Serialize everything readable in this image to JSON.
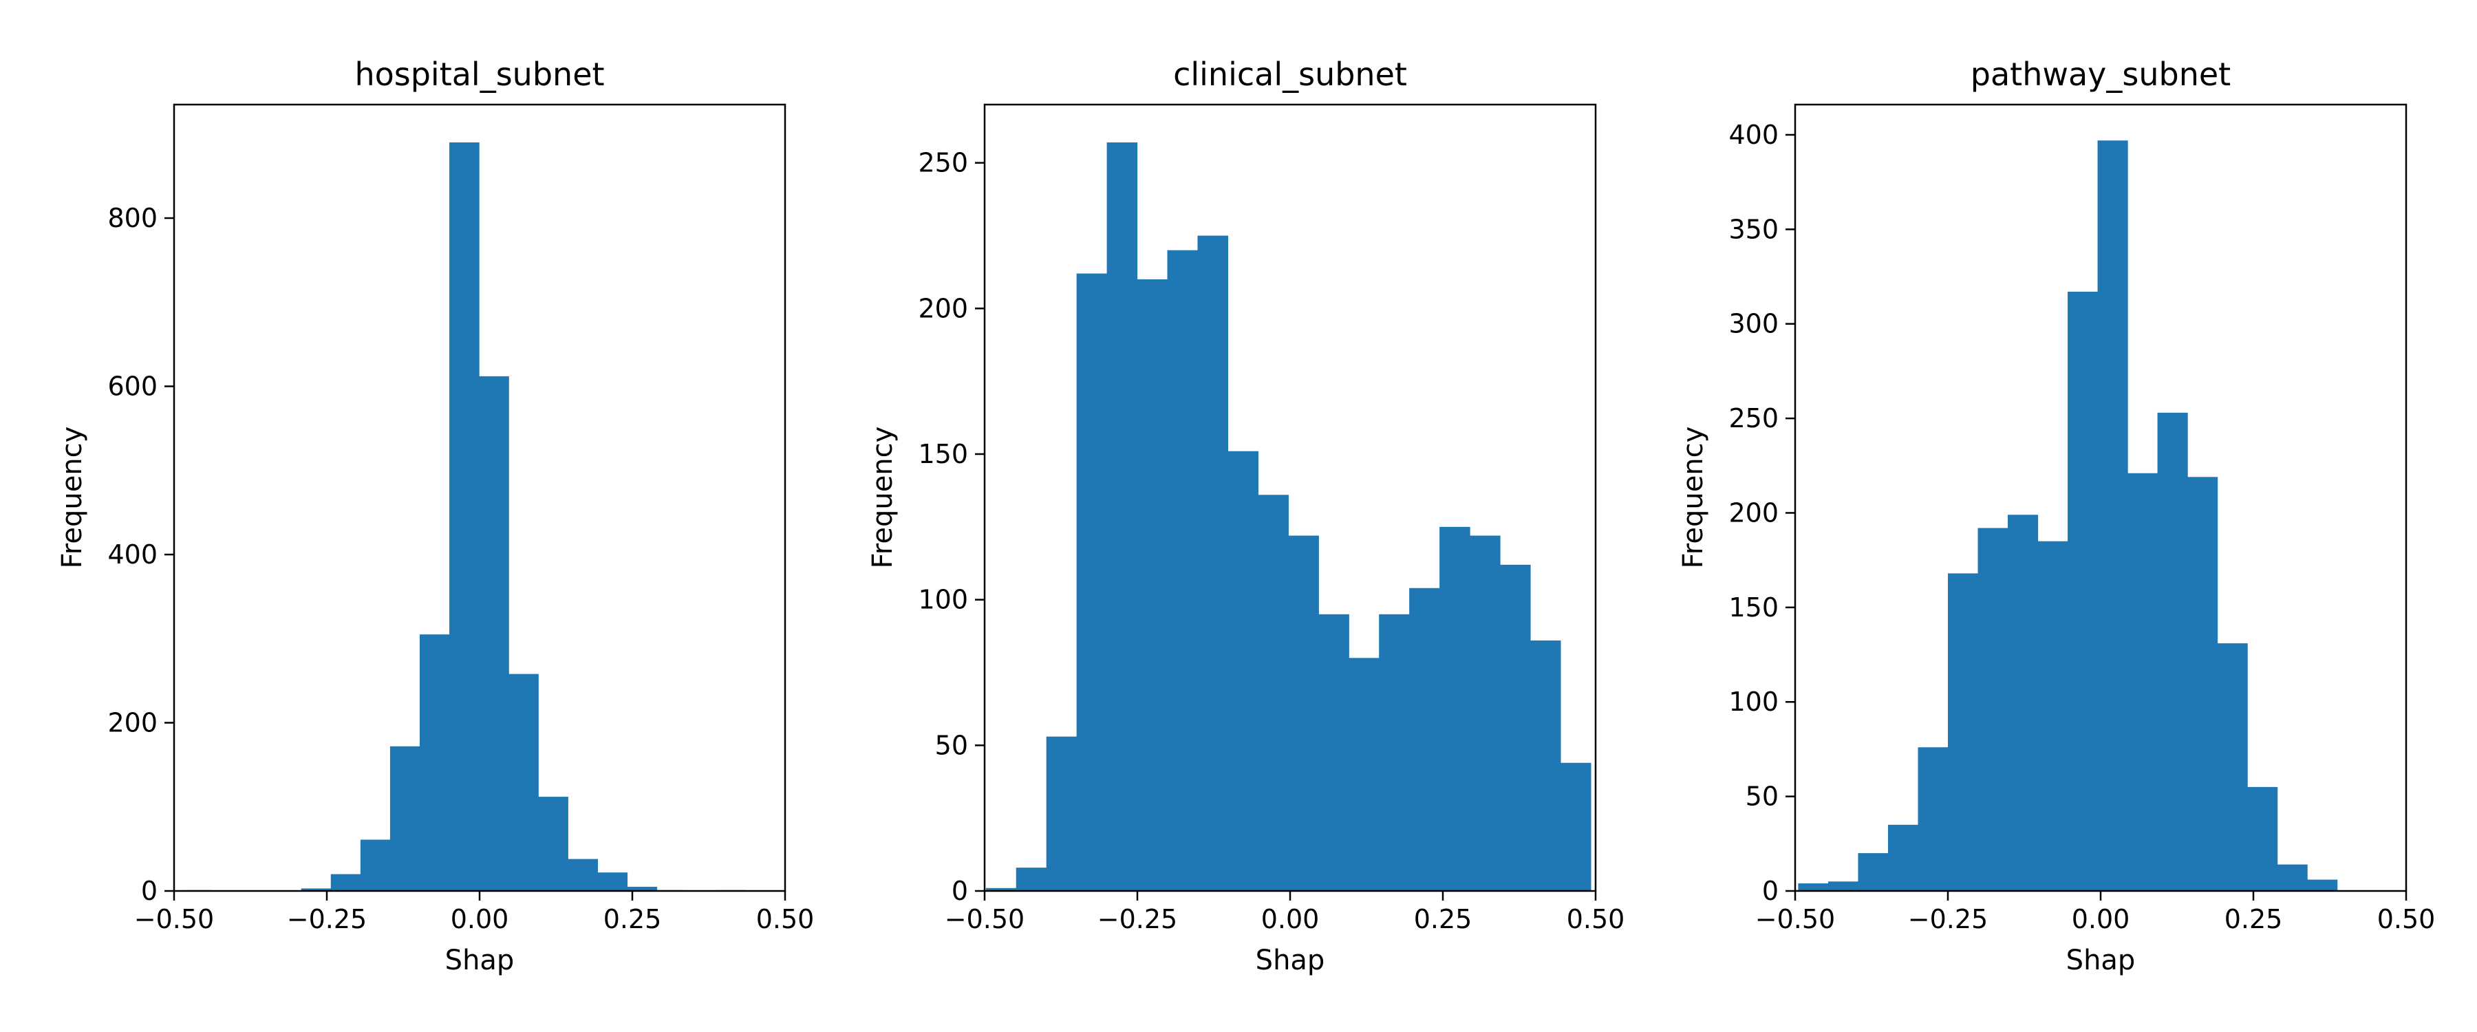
{
  "chart_data": [
    {
      "type": "bar",
      "title": "hospital_subnet",
      "xlabel": "Shap",
      "ylabel": "Frequency",
      "xlim": [
        -0.5,
        0.5
      ],
      "ylim": [
        0,
        935
      ],
      "xticks": [
        -0.5,
        -0.25,
        0.0,
        0.25,
        0.5
      ],
      "xtick_labels": [
        "−0.50",
        "−0.25",
        "0.00",
        "0.25",
        "0.50"
      ],
      "yticks": [
        0,
        200,
        400,
        600,
        800
      ],
      "ytick_labels": [
        "0",
        "200",
        "400",
        "600",
        "800"
      ],
      "bar_color": "#1f77b4",
      "grid": false,
      "bin_edges": [
        -0.486,
        -0.4375,
        -0.389,
        -0.3405,
        -0.292,
        -0.2435,
        -0.195,
        -0.1465,
        -0.098,
        -0.0495,
        -0.001,
        0.0475,
        0.096,
        0.1445,
        0.193,
        0.2415,
        0.29,
        0.3385,
        0.387,
        0.4355,
        0.484
      ],
      "values": [
        1,
        0,
        0,
        0,
        3,
        20,
        61,
        172,
        305,
        890,
        612,
        258,
        112,
        38,
        22,
        5,
        1,
        0,
        1,
        0
      ]
    },
    {
      "type": "bar",
      "title": "clinical_subnet",
      "xlabel": "Shap",
      "ylabel": "Frequency",
      "xlim": [
        -0.5,
        0.5
      ],
      "ylim": [
        0,
        270
      ],
      "xticks": [
        -0.5,
        -0.25,
        0.0,
        0.25,
        0.5
      ],
      "xtick_labels": [
        "−0.50",
        "−0.25",
        "0.00",
        "0.25",
        "0.50"
      ],
      "yticks": [
        0,
        50,
        100,
        150,
        200,
        250
      ],
      "ytick_labels": [
        "0",
        "50",
        "100",
        "150",
        "200",
        "250"
      ],
      "bar_color": "#1f77b4",
      "grid": false,
      "bin_edges": [
        -0.498,
        -0.4485,
        -0.399,
        -0.3495,
        -0.3,
        -0.2505,
        -0.201,
        -0.1515,
        -0.102,
        -0.0525,
        -0.003,
        0.0465,
        0.096,
        0.1455,
        0.195,
        0.2445,
        0.294,
        0.3435,
        0.393,
        0.4425,
        0.492
      ],
      "values": [
        1,
        8,
        53,
        212,
        257,
        210,
        220,
        225,
        151,
        136,
        122,
        95,
        80,
        95,
        104,
        125,
        122,
        112,
        86,
        44
      ]
    },
    {
      "type": "bar",
      "title": "pathway_subnet",
      "xlabel": "Shap",
      "ylabel": "Frequency",
      "xlim": [
        -0.5,
        0.5
      ],
      "ylim": [
        0,
        416
      ],
      "xticks": [
        -0.5,
        -0.25,
        0.0,
        0.25,
        0.5
      ],
      "xtick_labels": [
        "−0.50",
        "−0.25",
        "0.00",
        "0.25",
        "0.50"
      ],
      "yticks": [
        0,
        50,
        100,
        150,
        200,
        250,
        300,
        350,
        400
      ],
      "ytick_labels": [
        "0",
        "50",
        "100",
        "150",
        "200",
        "250",
        "300",
        "350",
        "400"
      ],
      "bar_color": "#1f77b4",
      "grid": false,
      "bin_edges": [
        -0.495,
        -0.446,
        -0.397,
        -0.348,
        -0.299,
        -0.25,
        -0.201,
        -0.152,
        -0.103,
        -0.054,
        -0.005,
        0.044,
        0.093,
        0.142,
        0.191,
        0.24,
        0.289,
        0.338,
        0.387,
        0.436,
        0.485
      ],
      "values": [
        4,
        5,
        20,
        35,
        76,
        168,
        192,
        199,
        185,
        317,
        397,
        221,
        253,
        219,
        131,
        55,
        14,
        6,
        0,
        0
      ]
    }
  ]
}
